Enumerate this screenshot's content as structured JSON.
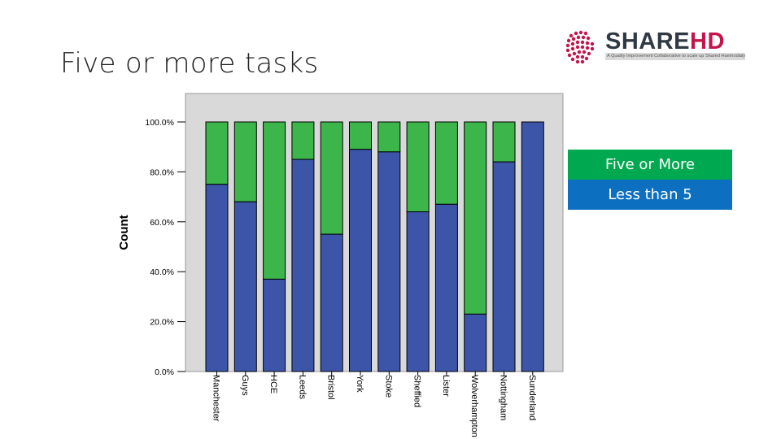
{
  "slide": {
    "title": "Five or more tasks"
  },
  "logo": {
    "share": "SHARE",
    "hd": "HD",
    "tagline": "A Quality Improvement Collaborative to scale up Shared Haemodialysis Care in centre based haemodialysis patients"
  },
  "legend": {
    "items": [
      {
        "label": "Five or More",
        "color": "#00a84f"
      },
      {
        "label": "Less than 5",
        "color": "#0d6fc0"
      }
    ]
  },
  "colors": {
    "plot_background": "#d9d9d9",
    "bar_green": "#3cb54a",
    "bar_blue": "#3d55a8"
  },
  "chart_data": {
    "type": "bar",
    "stacked": true,
    "title": "",
    "xlabel": "",
    "ylabel": "Count",
    "ylim": [
      0,
      100
    ],
    "yticks": [
      "0.0%",
      "20.0%",
      "40.0%",
      "60.0%",
      "80.0%",
      "100.0%"
    ],
    "categories": [
      "Manchester",
      "Guys",
      "HCE",
      "Leeds",
      "Bristol",
      "York",
      "Stoke",
      "Sheffied",
      "Lister",
      "Wolverhampton",
      "Nottingham",
      "Sunderland"
    ],
    "series": [
      {
        "name": "Less than 5",
        "values": [
          75,
          68,
          37,
          85,
          55,
          89,
          88,
          64,
          67,
          23,
          84,
          100
        ]
      },
      {
        "name": "Five or More",
        "values": [
          25,
          32,
          63,
          15,
          45,
          11,
          12,
          36,
          33,
          77,
          16,
          0
        ]
      }
    ]
  }
}
